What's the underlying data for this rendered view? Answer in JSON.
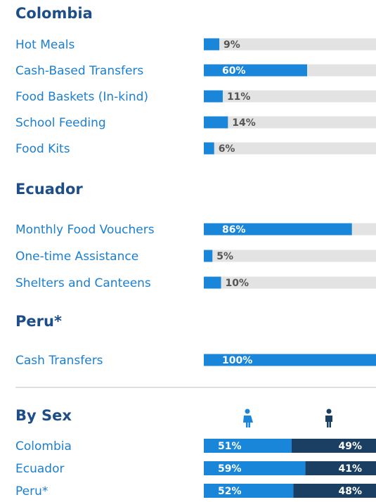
{
  "chart_data": [
    {
      "type": "bar",
      "title": "Colombia",
      "categories": [
        "Hot Meals",
        "Cash-Based Transfers",
        "Food Baskets (In-kind)",
        "School Feeding",
        "Food Kits"
      ],
      "values": [
        9,
        60,
        11,
        14,
        6
      ],
      "value_labels": [
        "9%",
        "60%",
        "11%",
        "14%",
        "6%"
      ],
      "xlim": [
        0,
        100
      ],
      "color": "#1a86d9"
    },
    {
      "type": "bar",
      "title": "Ecuador",
      "categories": [
        "Monthly Food Vouchers",
        "One-time Assistance",
        "Shelters and Canteens"
      ],
      "values": [
        86,
        5,
        10
      ],
      "value_labels": [
        "86%",
        "5%",
        "10%"
      ],
      "xlim": [
        0,
        100
      ],
      "color": "#1a86d9"
    },
    {
      "type": "bar",
      "title": "Peru*",
      "categories": [
        "Cash Transfers"
      ],
      "values": [
        100
      ],
      "value_labels": [
        "100%"
      ],
      "xlim": [
        0,
        100
      ],
      "color": "#1a86d9"
    },
    {
      "type": "stacked_bar",
      "title": "By Sex",
      "categories": [
        "Colombia",
        "Ecuador",
        "Peru*"
      ],
      "xlim": [
        0,
        100
      ],
      "series": [
        {
          "color": "#1a86d9",
          "values": [
            51,
            59,
            52
          ],
          "value_labels": [
            "51%",
            "59%",
            "52%"
          ]
        },
        {
          "color": "#1b3f63",
          "values": [
            49,
            41,
            48
          ],
          "value_labels": [
            "49%",
            "41%",
            "48%"
          ]
        }
      ]
    }
  ]
}
